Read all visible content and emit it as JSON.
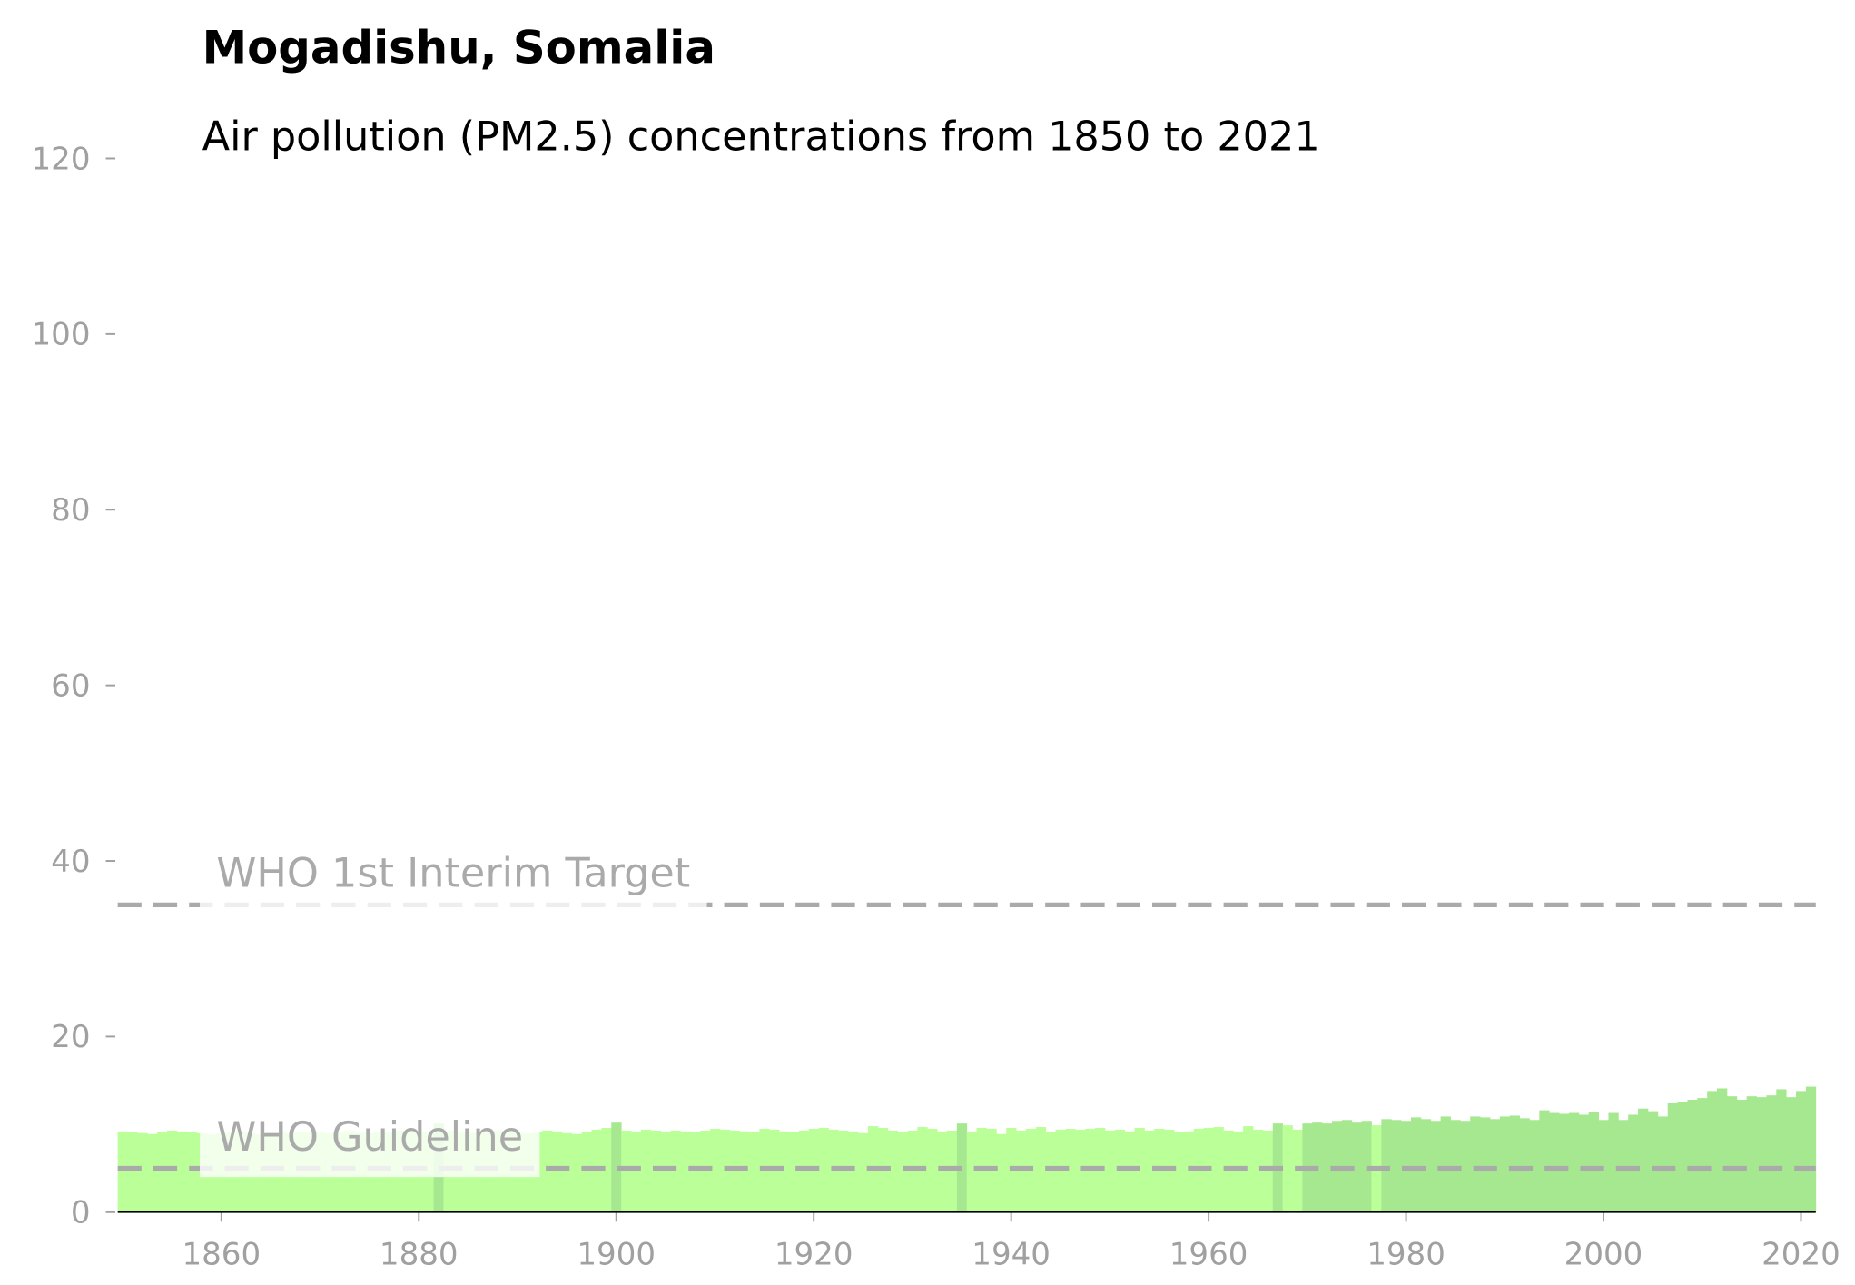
{
  "chart_data": {
    "type": "bar",
    "title": "Mogadishu, Somalia",
    "subtitle": "Air pollution (PM2.5) concentrations from 1850 to 2021",
    "xlim": [
      1849.5,
      2021.5
    ],
    "xticks": [
      1860,
      1880,
      1900,
      1920,
      1940,
      1960,
      1980,
      2000,
      2020
    ],
    "ylim": [
      0,
      120
    ],
    "yticks": [
      0,
      20,
      40,
      60,
      80,
      100,
      120
    ],
    "x": [
      1850,
      1851,
      1852,
      1853,
      1854,
      1855,
      1856,
      1857,
      1858,
      1859,
      1860,
      1861,
      1862,
      1863,
      1864,
      1865,
      1866,
      1867,
      1868,
      1869,
      1870,
      1871,
      1872,
      1873,
      1874,
      1875,
      1876,
      1877,
      1878,
      1879,
      1880,
      1881,
      1882,
      1883,
      1884,
      1885,
      1886,
      1887,
      1888,
      1889,
      1890,
      1891,
      1892,
      1893,
      1894,
      1895,
      1896,
      1897,
      1898,
      1899,
      1900,
      1901,
      1902,
      1903,
      1904,
      1905,
      1906,
      1907,
      1908,
      1909,
      1910,
      1911,
      1912,
      1913,
      1914,
      1915,
      1916,
      1917,
      1918,
      1919,
      1920,
      1921,
      1922,
      1923,
      1924,
      1925,
      1926,
      1927,
      1928,
      1929,
      1930,
      1931,
      1932,
      1933,
      1934,
      1935,
      1936,
      1937,
      1938,
      1939,
      1940,
      1941,
      1942,
      1943,
      1944,
      1945,
      1946,
      1947,
      1948,
      1949,
      1950,
      1951,
      1952,
      1953,
      1954,
      1955,
      1956,
      1957,
      1958,
      1959,
      1960,
      1961,
      1962,
      1963,
      1964,
      1965,
      1966,
      1967,
      1968,
      1969,
      1970,
      1971,
      1972,
      1973,
      1974,
      1975,
      1976,
      1977,
      1978,
      1979,
      1980,
      1981,
      1982,
      1983,
      1984,
      1985,
      1986,
      1987,
      1988,
      1989,
      1990,
      1991,
      1992,
      1993,
      1994,
      1995,
      1996,
      1997,
      1998,
      1999,
      2000,
      2001,
      2002,
      2003,
      2004,
      2005,
      2006,
      2007,
      2008,
      2009,
      2010,
      2011,
      2012,
      2013,
      2014,
      2015,
      2016,
      2017,
      2018,
      2019,
      2020,
      2021
    ],
    "values": [
      9.2,
      9.1,
      9.0,
      8.9,
      9.1,
      9.3,
      9.2,
      9.1,
      9.0,
      8.9,
      9.0,
      9.1,
      9.2,
      9.0,
      8.9,
      9.1,
      9.2,
      9.0,
      9.1,
      9.2,
      9.1,
      9.0,
      9.2,
      9.3,
      9.1,
      9.0,
      9.2,
      9.1,
      9.3,
      9.2,
      9.1,
      9.2,
      10.1,
      9.3,
      9.2,
      9.1,
      9.0,
      9.2,
      9.3,
      9.1,
      9.2,
      9.0,
      9.1,
      9.3,
      9.2,
      9.0,
      8.9,
      9.1,
      9.4,
      9.6,
      10.2,
      9.3,
      9.2,
      9.4,
      9.3,
      9.2,
      9.3,
      9.2,
      9.1,
      9.3,
      9.5,
      9.4,
      9.3,
      9.2,
      9.1,
      9.5,
      9.4,
      9.2,
      9.1,
      9.3,
      9.5,
      9.6,
      9.4,
      9.3,
      9.2,
      9.0,
      9.8,
      9.6,
      9.3,
      9.1,
      9.3,
      9.7,
      9.5,
      9.2,
      9.3,
      10.1,
      9.2,
      9.6,
      9.5,
      8.9,
      9.6,
      9.3,
      9.5,
      9.7,
      9.1,
      9.4,
      9.5,
      9.4,
      9.5,
      9.6,
      9.3,
      9.4,
      9.2,
      9.6,
      9.3,
      9.5,
      9.4,
      9.1,
      9.2,
      9.5,
      9.6,
      9.7,
      9.3,
      9.2,
      9.8,
      9.4,
      9.3,
      10.1,
      9.9,
      9.4,
      10.1,
      10.2,
      10.1,
      10.4,
      10.5,
      10.2,
      10.4,
      9.9,
      10.6,
      10.5,
      10.4,
      10.8,
      10.6,
      10.4,
      10.9,
      10.5,
      10.4,
      10.9,
      10.8,
      10.6,
      10.9,
      11.0,
      10.7,
      10.5,
      11.6,
      11.3,
      11.2,
      11.3,
      11.1,
      11.4,
      10.5,
      11.3,
      10.5,
      11.1,
      11.8,
      11.5,
      10.9,
      12.4,
      12.5,
      12.8,
      13.0,
      13.8,
      14.1,
      13.2,
      12.8,
      13.2,
      13.1,
      13.3,
      14.0,
      13.1,
      13.8,
      14.3
    ],
    "colors": [
      "#bbff99",
      "#bbff99",
      "#bbff99",
      "#bbff99",
      "#bbff99",
      "#bbff99",
      "#bbff99",
      "#bbff99",
      "#bbff99",
      "#bbff99",
      "#bbff99",
      "#bbff99",
      "#bbff99",
      "#bbff99",
      "#bbff99",
      "#bbff99",
      "#bbff99",
      "#bbff99",
      "#bbff99",
      "#bbff99",
      "#bbff99",
      "#bbff99",
      "#bbff99",
      "#bbff99",
      "#bbff99",
      "#bbff99",
      "#bbff99",
      "#bbff99",
      "#bbff99",
      "#bbff99",
      "#bbff99",
      "#bbff99",
      "#a6e88f",
      "#bbff99",
      "#bbff99",
      "#bbff99",
      "#bbff99",
      "#bbff99",
      "#bbff99",
      "#bbff99",
      "#bbff99",
      "#bbff99",
      "#bbff99",
      "#bbff99",
      "#bbff99",
      "#bbff99",
      "#bbff99",
      "#bbff99",
      "#bbff99",
      "#bbff99",
      "#a6e88f",
      "#bbff99",
      "#bbff99",
      "#bbff99",
      "#bbff99",
      "#bbff99",
      "#bbff99",
      "#bbff99",
      "#bbff99",
      "#bbff99",
      "#bbff99",
      "#bbff99",
      "#bbff99",
      "#bbff99",
      "#bbff99",
      "#bbff99",
      "#bbff99",
      "#bbff99",
      "#bbff99",
      "#bbff99",
      "#bbff99",
      "#bbff99",
      "#bbff99",
      "#bbff99",
      "#bbff99",
      "#bbff99",
      "#bbff99",
      "#bbff99",
      "#bbff99",
      "#bbff99",
      "#bbff99",
      "#bbff99",
      "#bbff99",
      "#bbff99",
      "#bbff99",
      "#a6e88f",
      "#bbff99",
      "#bbff99",
      "#bbff99",
      "#bbff99",
      "#bbff99",
      "#bbff99",
      "#bbff99",
      "#bbff99",
      "#bbff99",
      "#bbff99",
      "#bbff99",
      "#bbff99",
      "#bbff99",
      "#bbff99",
      "#bbff99",
      "#bbff99",
      "#bbff99",
      "#bbff99",
      "#bbff99",
      "#bbff99",
      "#bbff99",
      "#bbff99",
      "#bbff99",
      "#bbff99",
      "#bbff99",
      "#bbff99",
      "#bbff99",
      "#bbff99",
      "#bbff99",
      "#bbff99",
      "#bbff99",
      "#a6e88f",
      "#bbff99",
      "#bbff99",
      "#a6e88f",
      "#a6e88f",
      "#a6e88f",
      "#a6e88f",
      "#a6e88f",
      "#a6e88f",
      "#a6e88f",
      "#bbff99",
      "#a6e88f",
      "#a6e88f",
      "#a6e88f",
      "#a6e88f",
      "#a6e88f",
      "#a6e88f",
      "#a6e88f",
      "#a6e88f",
      "#a6e88f",
      "#a6e88f",
      "#a6e88f",
      "#a6e88f",
      "#a6e88f",
      "#a6e88f",
      "#a6e88f",
      "#a6e88f",
      "#a6e88f",
      "#a6e88f",
      "#a6e88f",
      "#a6e88f",
      "#a6e88f",
      "#a6e88f",
      "#a6e88f",
      "#a6e88f",
      "#a6e88f",
      "#a6e88f",
      "#a6e88f",
      "#a6e88f",
      "#a6e88f",
      "#a6e88f",
      "#a6e88f",
      "#a6e88f",
      "#a6e88f",
      "#a6e88f",
      "#a6e88f",
      "#a6e88f",
      "#a6e88f",
      "#a6e88f",
      "#a6e88f",
      "#a6e88f",
      "#a6e88f",
      "#a6e88f",
      "#a6e88f",
      "#a6e88f"
    ],
    "reference_lines": [
      {
        "label": "WHO 1st Interim Target",
        "value": 35,
        "color": "#aaaaaa"
      },
      {
        "label": "WHO Guideline",
        "value": 5,
        "color": "#aaaaaa"
      }
    ]
  }
}
